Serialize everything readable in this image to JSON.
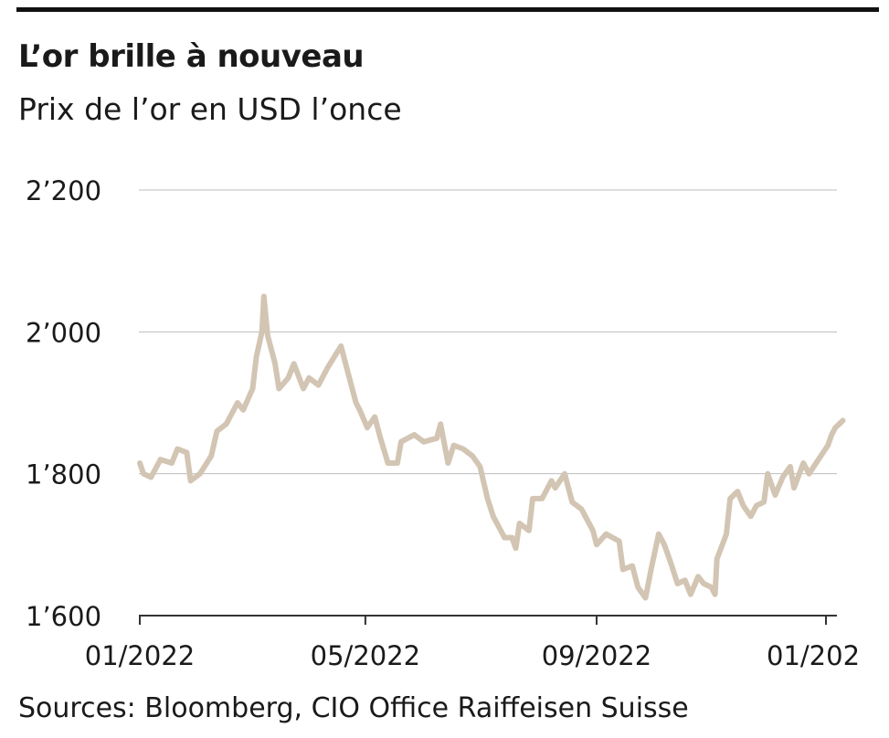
{
  "title": "L’or brille à nouveau",
  "subtitle": "Prix de l’or en USD l’once",
  "source": "Sources: Bloomberg, CIO Office Raiffeisen Suisse",
  "colors": {
    "line": "#d3c5b3",
    "grid": "#bdbdbd",
    "axis": "#333333",
    "text": "#1a1a1a"
  },
  "chart_data": {
    "type": "line",
    "title": "L’or brille à nouveau",
    "subtitle": "Prix de l’or en USD l’once",
    "xlabel": "",
    "ylabel": "",
    "ylim": [
      1600,
      2200
    ],
    "xlim": [
      "2022-01-01",
      "2023-01-15"
    ],
    "y_ticks": [
      1600,
      1800,
      2000,
      2200
    ],
    "y_tick_labels": [
      "1’600",
      "1’800",
      "2’000",
      "2’200"
    ],
    "x_ticks": [
      "2022-01-01",
      "2022-05-01",
      "2022-09-01",
      "2023-01-01"
    ],
    "x_tick_labels": [
      "01/2022",
      "05/2022",
      "09/2022",
      "01/202"
    ],
    "grid": true,
    "series": [
      {
        "values": [
          [
            "2022-01-01",
            1815
          ],
          [
            "2022-01-03",
            1800
          ],
          [
            "2022-01-07",
            1795
          ],
          [
            "2022-01-12",
            1820
          ],
          [
            "2022-01-18",
            1815
          ],
          [
            "2022-01-21",
            1835
          ],
          [
            "2022-01-26",
            1830
          ],
          [
            "2022-01-28",
            1790
          ],
          [
            "2022-02-02",
            1800
          ],
          [
            "2022-02-08",
            1825
          ],
          [
            "2022-02-11",
            1860
          ],
          [
            "2022-02-16",
            1870
          ],
          [
            "2022-02-22",
            1900
          ],
          [
            "2022-02-25",
            1890
          ],
          [
            "2022-03-02",
            1920
          ],
          [
            "2022-03-04",
            1965
          ],
          [
            "2022-03-07",
            2000
          ],
          [
            "2022-03-08",
            2050
          ],
          [
            "2022-03-10",
            1995
          ],
          [
            "2022-03-14",
            1955
          ],
          [
            "2022-03-16",
            1920
          ],
          [
            "2022-03-21",
            1935
          ],
          [
            "2022-03-24",
            1955
          ],
          [
            "2022-03-29",
            1920
          ],
          [
            "2022-04-01",
            1935
          ],
          [
            "2022-04-06",
            1925
          ],
          [
            "2022-04-11",
            1950
          ],
          [
            "2022-04-18",
            1980
          ],
          [
            "2022-04-21",
            1950
          ],
          [
            "2022-04-26",
            1900
          ],
          [
            "2022-04-28",
            1890
          ],
          [
            "2022-05-02",
            1865
          ],
          [
            "2022-05-06",
            1880
          ],
          [
            "2022-05-09",
            1850
          ],
          [
            "2022-05-13",
            1815
          ],
          [
            "2022-05-18",
            1815
          ],
          [
            "2022-05-20",
            1845
          ],
          [
            "2022-05-27",
            1855
          ],
          [
            "2022-06-01",
            1845
          ],
          [
            "2022-06-08",
            1850
          ],
          [
            "2022-06-10",
            1870
          ],
          [
            "2022-06-14",
            1815
          ],
          [
            "2022-06-17",
            1840
          ],
          [
            "2022-06-22",
            1835
          ],
          [
            "2022-06-27",
            1825
          ],
          [
            "2022-07-01",
            1810
          ],
          [
            "2022-07-05",
            1765
          ],
          [
            "2022-07-08",
            1740
          ],
          [
            "2022-07-14",
            1710
          ],
          [
            "2022-07-18",
            1710
          ],
          [
            "2022-07-20",
            1695
          ],
          [
            "2022-07-22",
            1730
          ],
          [
            "2022-07-27",
            1720
          ],
          [
            "2022-07-29",
            1765
          ],
          [
            "2022-08-03",
            1765
          ],
          [
            "2022-08-08",
            1790
          ],
          [
            "2022-08-10",
            1780
          ],
          [
            "2022-08-15",
            1800
          ],
          [
            "2022-08-19",
            1760
          ],
          [
            "2022-08-24",
            1750
          ],
          [
            "2022-08-26",
            1740
          ],
          [
            "2022-08-30",
            1720
          ],
          [
            "2022-09-01",
            1700
          ],
          [
            "2022-09-06",
            1715
          ],
          [
            "2022-09-13",
            1705
          ],
          [
            "2022-09-15",
            1665
          ],
          [
            "2022-09-20",
            1670
          ],
          [
            "2022-09-23",
            1640
          ],
          [
            "2022-09-27",
            1625
          ],
          [
            "2022-09-30",
            1665
          ],
          [
            "2022-10-04",
            1715
          ],
          [
            "2022-10-07",
            1700
          ],
          [
            "2022-10-11",
            1670
          ],
          [
            "2022-10-14",
            1645
          ],
          [
            "2022-10-18",
            1650
          ],
          [
            "2022-10-21",
            1630
          ],
          [
            "2022-10-25",
            1655
          ],
          [
            "2022-10-28",
            1645
          ],
          [
            "2022-11-01",
            1640
          ],
          [
            "2022-11-03",
            1630
          ],
          [
            "2022-11-04",
            1680
          ],
          [
            "2022-11-09",
            1715
          ],
          [
            "2022-11-11",
            1765
          ],
          [
            "2022-11-15",
            1775
          ],
          [
            "2022-11-18",
            1755
          ],
          [
            "2022-11-22",
            1740
          ],
          [
            "2022-11-25",
            1755
          ],
          [
            "2022-11-29",
            1760
          ],
          [
            "2022-12-01",
            1800
          ],
          [
            "2022-12-05",
            1770
          ],
          [
            "2022-12-09",
            1795
          ],
          [
            "2022-12-13",
            1810
          ],
          [
            "2022-12-15",
            1780
          ],
          [
            "2022-12-20",
            1815
          ],
          [
            "2022-12-23",
            1800
          ],
          [
            "2022-12-28",
            1820
          ],
          [
            "2023-01-02",
            1840
          ],
          [
            "2023-01-04",
            1855
          ],
          [
            "2023-01-06",
            1865
          ],
          [
            "2023-01-10",
            1875
          ]
        ]
      }
    ]
  }
}
